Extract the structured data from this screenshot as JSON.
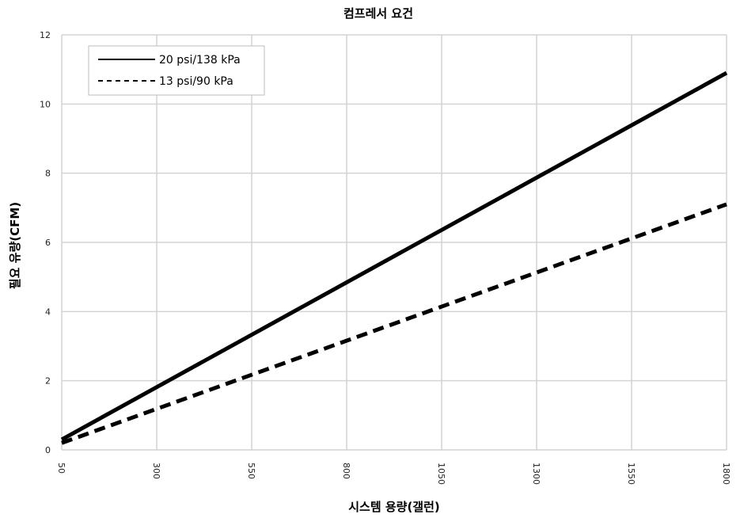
{
  "chart_data": {
    "type": "line",
    "title": "컴프레서 요건",
    "xlabel": "시스템 용량(갤런)",
    "ylabel": "필요 유량(CFM)",
    "x_ticks": [
      50,
      300,
      550,
      800,
      1050,
      1300,
      1550,
      1800
    ],
    "y_ticks": [
      0,
      2,
      4,
      6,
      8,
      10,
      12
    ],
    "xlim": [
      50,
      1800
    ],
    "ylim": [
      0,
      12
    ],
    "grid": true,
    "legend_position": "top-left",
    "series": [
      {
        "name": "20 psi/138 kPa",
        "style": "solid",
        "color": "#000000",
        "x": [
          50,
          1800
        ],
        "y": [
          0.3,
          10.9
        ]
      },
      {
        "name": "13 psi/90 kPa",
        "style": "dashed",
        "color": "#000000",
        "x": [
          50,
          1800
        ],
        "y": [
          0.2,
          7.1
        ]
      }
    ]
  }
}
